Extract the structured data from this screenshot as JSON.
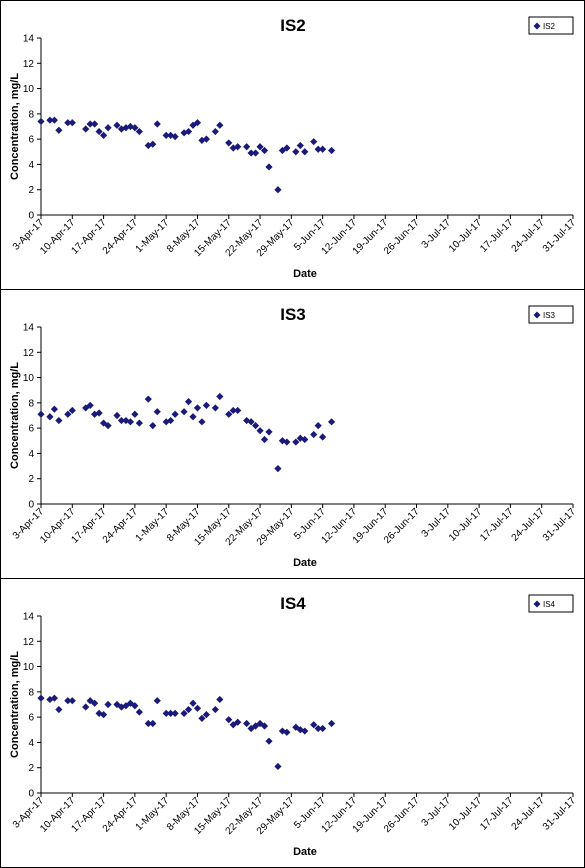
{
  "chart_data": [
    {
      "type": "scatter",
      "title": "IS2",
      "xlabel": "Date",
      "ylabel": "Concentration, mg/L",
      "legend": "IS2",
      "legend_position": "top-right",
      "ylim": [
        0,
        14
      ],
      "yticks": [
        "0",
        "2",
        "4",
        "6",
        "8",
        "10",
        "12",
        "14"
      ],
      "xticks": [
        "3-Apr-17",
        "10-Apr-17",
        "17-Apr-17",
        "24-Apr-17",
        "1-May-17",
        "8-May-17",
        "15-May-17",
        "22-May-17",
        "29-May-17",
        "5-Jun-17",
        "12-Jun-17",
        "19-Jun-17",
        "26-Jun-17",
        "3-Jul-17",
        "10-Jul-17",
        "17-Jul-17",
        "24-Jul-17",
        "31-Jul-17"
      ],
      "marker_color": "#1a1a7a",
      "points": [
        {
          "x": "3-Apr-17",
          "y": 7.4
        },
        {
          "x": "5-Apr-17",
          "y": 7.5
        },
        {
          "x": "6-Apr-17",
          "y": 7.5
        },
        {
          "x": "7-Apr-17",
          "y": 6.7
        },
        {
          "x": "9-Apr-17",
          "y": 7.3
        },
        {
          "x": "10-Apr-17",
          "y": 7.3
        },
        {
          "x": "13-Apr-17",
          "y": 6.8
        },
        {
          "x": "14-Apr-17",
          "y": 7.2
        },
        {
          "x": "15-Apr-17",
          "y": 7.2
        },
        {
          "x": "16-Apr-17",
          "y": 6.6
        },
        {
          "x": "17-Apr-17",
          "y": 6.3
        },
        {
          "x": "18-Apr-17",
          "y": 6.9
        },
        {
          "x": "20-Apr-17",
          "y": 7.1
        },
        {
          "x": "21-Apr-17",
          "y": 6.8
        },
        {
          "x": "22-Apr-17",
          "y": 6.9
        },
        {
          "x": "23-Apr-17",
          "y": 7.0
        },
        {
          "x": "24-Apr-17",
          "y": 6.9
        },
        {
          "x": "25-Apr-17",
          "y": 6.6
        },
        {
          "x": "27-Apr-17",
          "y": 5.5
        },
        {
          "x": "28-Apr-17",
          "y": 5.6
        },
        {
          "x": "29-Apr-17",
          "y": 7.2
        },
        {
          "x": "1-May-17",
          "y": 6.3
        },
        {
          "x": "2-May-17",
          "y": 6.3
        },
        {
          "x": "3-May-17",
          "y": 6.2
        },
        {
          "x": "5-May-17",
          "y": 6.5
        },
        {
          "x": "6-May-17",
          "y": 6.6
        },
        {
          "x": "7-May-17",
          "y": 7.1
        },
        {
          "x": "8-May-17",
          "y": 7.3
        },
        {
          "x": "9-May-17",
          "y": 5.9
        },
        {
          "x": "10-May-17",
          "y": 6.0
        },
        {
          "x": "12-May-17",
          "y": 6.6
        },
        {
          "x": "13-May-17",
          "y": 7.1
        },
        {
          "x": "15-May-17",
          "y": 5.7
        },
        {
          "x": "16-May-17",
          "y": 5.3
        },
        {
          "x": "17-May-17",
          "y": 5.4
        },
        {
          "x": "19-May-17",
          "y": 5.4
        },
        {
          "x": "20-May-17",
          "y": 4.9
        },
        {
          "x": "21-May-17",
          "y": 4.9
        },
        {
          "x": "22-May-17",
          "y": 5.4
        },
        {
          "x": "23-May-17",
          "y": 5.1
        },
        {
          "x": "24-May-17",
          "y": 3.8
        },
        {
          "x": "26-May-17",
          "y": 2.0
        },
        {
          "x": "27-May-17",
          "y": 5.1
        },
        {
          "x": "28-May-17",
          "y": 5.3
        },
        {
          "x": "30-May-17",
          "y": 5.0
        },
        {
          "x": "31-May-17",
          "y": 5.5
        },
        {
          "x": "1-Jun-17",
          "y": 5.0
        },
        {
          "x": "3-Jun-17",
          "y": 5.8
        },
        {
          "x": "4-Jun-17",
          "y": 5.2
        },
        {
          "x": "5-Jun-17",
          "y": 5.2
        },
        {
          "x": "7-Jun-17",
          "y": 5.1
        }
      ]
    },
    {
      "type": "scatter",
      "title": "IS3",
      "xlabel": "Date",
      "ylabel": "Concentration, mg/L",
      "legend": "IS3",
      "legend_position": "top-right",
      "ylim": [
        0,
        14
      ],
      "yticks": [
        "0",
        "2",
        "4",
        "6",
        "8",
        "10",
        "12",
        "14"
      ],
      "xticks": [
        "3-Apr-17",
        "10-Apr-17",
        "17-Apr-17",
        "24-Apr-17",
        "1-May-17",
        "8-May-17",
        "15-May-17",
        "22-May-17",
        "29-May-17",
        "5-Jun-17",
        "12-Jun-17",
        "19-Jun-17",
        "26-Jun-17",
        "3-Jul-17",
        "10-Jul-17",
        "17-Jul-17",
        "24-Jul-17",
        "31-Jul-17"
      ],
      "marker_color": "#1a1a7a",
      "points": [
        {
          "x": "3-Apr-17",
          "y": 7.1
        },
        {
          "x": "5-Apr-17",
          "y": 6.9
        },
        {
          "x": "6-Apr-17",
          "y": 7.5
        },
        {
          "x": "7-Apr-17",
          "y": 6.6
        },
        {
          "x": "9-Apr-17",
          "y": 7.1
        },
        {
          "x": "10-Apr-17",
          "y": 7.4
        },
        {
          "x": "13-Apr-17",
          "y": 7.6
        },
        {
          "x": "14-Apr-17",
          "y": 7.8
        },
        {
          "x": "15-Apr-17",
          "y": 7.1
        },
        {
          "x": "16-Apr-17",
          "y": 7.2
        },
        {
          "x": "17-Apr-17",
          "y": 6.4
        },
        {
          "x": "18-Apr-17",
          "y": 6.2
        },
        {
          "x": "20-Apr-17",
          "y": 7.0
        },
        {
          "x": "21-Apr-17",
          "y": 6.6
        },
        {
          "x": "22-Apr-17",
          "y": 6.6
        },
        {
          "x": "23-Apr-17",
          "y": 6.5
        },
        {
          "x": "24-Apr-17",
          "y": 7.1
        },
        {
          "x": "25-Apr-17",
          "y": 6.4
        },
        {
          "x": "27-Apr-17",
          "y": 8.3
        },
        {
          "x": "28-Apr-17",
          "y": 6.2
        },
        {
          "x": "29-Apr-17",
          "y": 7.3
        },
        {
          "x": "1-May-17",
          "y": 6.5
        },
        {
          "x": "2-May-17",
          "y": 6.6
        },
        {
          "x": "3-May-17",
          "y": 7.1
        },
        {
          "x": "5-May-17",
          "y": 7.3
        },
        {
          "x": "6-May-17",
          "y": 8.1
        },
        {
          "x": "7-May-17",
          "y": 6.9
        },
        {
          "x": "8-May-17",
          "y": 7.6
        },
        {
          "x": "9-May-17",
          "y": 6.5
        },
        {
          "x": "10-May-17",
          "y": 7.8
        },
        {
          "x": "12-May-17",
          "y": 7.6
        },
        {
          "x": "13-May-17",
          "y": 8.5
        },
        {
          "x": "15-May-17",
          "y": 7.1
        },
        {
          "x": "16-May-17",
          "y": 7.4
        },
        {
          "x": "17-May-17",
          "y": 7.4
        },
        {
          "x": "19-May-17",
          "y": 6.6
        },
        {
          "x": "20-May-17",
          "y": 6.5
        },
        {
          "x": "21-May-17",
          "y": 6.2
        },
        {
          "x": "22-May-17",
          "y": 5.8
        },
        {
          "x": "23-May-17",
          "y": 5.1
        },
        {
          "x": "24-May-17",
          "y": 5.7
        },
        {
          "x": "26-May-17",
          "y": 2.8
        },
        {
          "x": "27-May-17",
          "y": 5.0
        },
        {
          "x": "28-May-17",
          "y": 4.9
        },
        {
          "x": "30-May-17",
          "y": 4.9
        },
        {
          "x": "31-May-17",
          "y": 5.2
        },
        {
          "x": "1-Jun-17",
          "y": 5.1
        },
        {
          "x": "3-Jun-17",
          "y": 5.5
        },
        {
          "x": "4-Jun-17",
          "y": 6.2
        },
        {
          "x": "5-Jun-17",
          "y": 5.3
        },
        {
          "x": "7-Jun-17",
          "y": 6.5
        }
      ]
    },
    {
      "type": "scatter",
      "title": "IS4",
      "xlabel": "Date",
      "ylabel": "Concentration, mg/L",
      "legend": "IS4",
      "legend_position": "top-right",
      "ylim": [
        0,
        14
      ],
      "yticks": [
        "0",
        "2",
        "4",
        "6",
        "8",
        "10",
        "12",
        "14"
      ],
      "xticks": [
        "3-Apr-17",
        "10-Apr-17",
        "17-Apr-17",
        "24-Apr-17",
        "1-May-17",
        "8-May-17",
        "15-May-17",
        "22-May-17",
        "29-May-17",
        "5-Jun-17",
        "12-Jun-17",
        "19-Jun-17",
        "26-Jun-17",
        "3-Jul-17",
        "10-Jul-17",
        "17-Jul-17",
        "24-Jul-17",
        "31-Jul-17"
      ],
      "marker_color": "#1a1a7a",
      "points": [
        {
          "x": "3-Apr-17",
          "y": 7.5
        },
        {
          "x": "5-Apr-17",
          "y": 7.4
        },
        {
          "x": "6-Apr-17",
          "y": 7.5
        },
        {
          "x": "7-Apr-17",
          "y": 6.6
        },
        {
          "x": "9-Apr-17",
          "y": 7.3
        },
        {
          "x": "10-Apr-17",
          "y": 7.3
        },
        {
          "x": "13-Apr-17",
          "y": 6.8
        },
        {
          "x": "14-Apr-17",
          "y": 7.3
        },
        {
          "x": "15-Apr-17",
          "y": 7.1
        },
        {
          "x": "16-Apr-17",
          "y": 6.3
        },
        {
          "x": "17-Apr-17",
          "y": 6.2
        },
        {
          "x": "18-Apr-17",
          "y": 7.0
        },
        {
          "x": "20-Apr-17",
          "y": 7.0
        },
        {
          "x": "21-Apr-17",
          "y": 6.8
        },
        {
          "x": "22-Apr-17",
          "y": 6.9
        },
        {
          "x": "23-Apr-17",
          "y": 7.1
        },
        {
          "x": "24-Apr-17",
          "y": 6.9
        },
        {
          "x": "25-Apr-17",
          "y": 6.4
        },
        {
          "x": "27-Apr-17",
          "y": 5.5
        },
        {
          "x": "28-Apr-17",
          "y": 5.5
        },
        {
          "x": "29-Apr-17",
          "y": 7.3
        },
        {
          "x": "1-May-17",
          "y": 6.3
        },
        {
          "x": "2-May-17",
          "y": 6.3
        },
        {
          "x": "3-May-17",
          "y": 6.3
        },
        {
          "x": "5-May-17",
          "y": 6.3
        },
        {
          "x": "6-May-17",
          "y": 6.6
        },
        {
          "x": "7-May-17",
          "y": 7.1
        },
        {
          "x": "8-May-17",
          "y": 6.7
        },
        {
          "x": "9-May-17",
          "y": 5.9
        },
        {
          "x": "10-May-17",
          "y": 6.2
        },
        {
          "x": "12-May-17",
          "y": 6.6
        },
        {
          "x": "13-May-17",
          "y": 7.4
        },
        {
          "x": "15-May-17",
          "y": 5.8
        },
        {
          "x": "16-May-17",
          "y": 5.4
        },
        {
          "x": "17-May-17",
          "y": 5.6
        },
        {
          "x": "19-May-17",
          "y": 5.5
        },
        {
          "x": "20-May-17",
          "y": 5.1
        },
        {
          "x": "21-May-17",
          "y": 5.3
        },
        {
          "x": "22-May-17",
          "y": 5.5
        },
        {
          "x": "23-May-17",
          "y": 5.3
        },
        {
          "x": "24-May-17",
          "y": 4.1
        },
        {
          "x": "26-May-17",
          "y": 2.1
        },
        {
          "x": "27-May-17",
          "y": 4.9
        },
        {
          "x": "28-May-17",
          "y": 4.8
        },
        {
          "x": "30-May-17",
          "y": 5.2
        },
        {
          "x": "31-May-17",
          "y": 5.0
        },
        {
          "x": "1-Jun-17",
          "y": 4.9
        },
        {
          "x": "3-Jun-17",
          "y": 5.4
        },
        {
          "x": "4-Jun-17",
          "y": 5.1
        },
        {
          "x": "5-Jun-17",
          "y": 5.1
        },
        {
          "x": "7-Jun-17",
          "y": 5.5
        }
      ]
    }
  ]
}
